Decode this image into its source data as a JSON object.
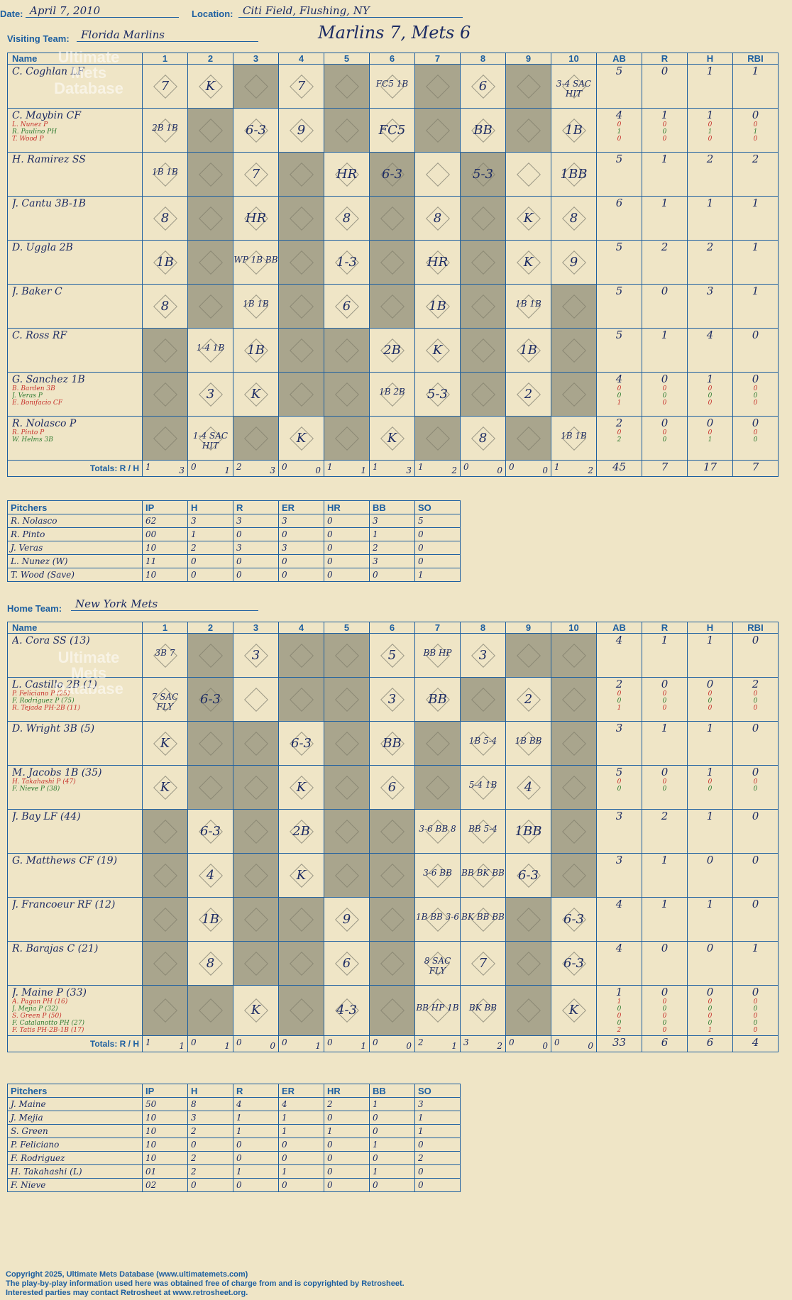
{
  "header": {
    "date_label": "Date:",
    "date": "April 7, 2010",
    "location_label": "Location:",
    "location": "Citi Field, Flushing, NY",
    "title": "Marlins 7, Mets 6"
  },
  "watermark": "Ultimate Mets Database",
  "visiting": {
    "label": "Visiting Team:",
    "team": "Florida Marlins",
    "cols": [
      "Name",
      "1",
      "2",
      "3",
      "4",
      "5",
      "6",
      "7",
      "8",
      "9",
      "10",
      "AB",
      "R",
      "H",
      "RBI"
    ],
    "rows": [
      {
        "name": "C. Coghlan LF",
        "subs": [],
        "gray": [
          3,
          5,
          7,
          9
        ],
        "plays": [
          "7",
          "K",
          "",
          "7",
          "",
          "FC5 1B",
          "",
          "6",
          "",
          "3-4 SAC HIT"
        ],
        "ab": [
          "5"
        ],
        "r": [
          "0"
        ],
        "h": [
          "1"
        ],
        "rbi": [
          "1"
        ]
      },
      {
        "name": "C. Maybin CF",
        "subs": [
          "L. Nunez P",
          "R. Paulino PH",
          "T. Wood P"
        ],
        "gray": [
          2,
          5,
          7,
          9
        ],
        "plays": [
          "2B 1B",
          "",
          "6-3",
          "9",
          "",
          "FC5",
          "",
          "BB",
          "",
          "1B"
        ],
        "ab": [
          "4",
          "0",
          "1",
          "0"
        ],
        "r": [
          "1",
          "0",
          "0",
          "0"
        ],
        "h": [
          "1",
          "0",
          "1",
          "0"
        ],
        "rbi": [
          "0",
          "0",
          "1",
          "0"
        ]
      },
      {
        "name": "H. Ramirez SS",
        "subs": [],
        "gray": [
          2,
          4,
          6,
          8
        ],
        "plays": [
          "1B 1B",
          "",
          "7",
          "",
          "HR",
          "6-3",
          "",
          "5-3",
          "",
          "1BB"
        ],
        "ab": [
          "5"
        ],
        "r": [
          "1"
        ],
        "h": [
          "2"
        ],
        "rbi": [
          "2"
        ]
      },
      {
        "name": "J. Cantu 3B-1B",
        "subs": [],
        "gray": [
          2,
          4,
          6,
          8
        ],
        "plays": [
          "8",
          "",
          "HR",
          "",
          "8",
          "",
          "8",
          "",
          "K",
          "8"
        ],
        "ab": [
          "6"
        ],
        "r": [
          "1"
        ],
        "h": [
          "1"
        ],
        "rbi": [
          "1"
        ]
      },
      {
        "name": "D. Uggla 2B",
        "subs": [],
        "gray": [
          2,
          4,
          6,
          8
        ],
        "plays": [
          "1B",
          "",
          "WP 1B BB",
          "",
          "1-3",
          "",
          "HR",
          "",
          "K",
          "9"
        ],
        "ab": [
          "5"
        ],
        "r": [
          "2"
        ],
        "h": [
          "2"
        ],
        "rbi": [
          "1"
        ]
      },
      {
        "name": "J. Baker C",
        "subs": [],
        "gray": [
          2,
          4,
          6,
          8,
          10
        ],
        "plays": [
          "8",
          "",
          "1B 1B",
          "",
          "6",
          "",
          "1B",
          "",
          "1B 1B",
          ""
        ],
        "ab": [
          "5"
        ],
        "r": [
          "0"
        ],
        "h": [
          "3"
        ],
        "rbi": [
          "1"
        ]
      },
      {
        "name": "C. Ross RF",
        "subs": [],
        "gray": [
          1,
          4,
          5,
          8,
          10
        ],
        "plays": [
          "",
          "1-4 1B",
          "1B",
          "",
          "",
          "2B",
          "K",
          "",
          "1B",
          ""
        ],
        "ab": [
          "5"
        ],
        "r": [
          "1"
        ],
        "h": [
          "4"
        ],
        "rbi": [
          "0"
        ]
      },
      {
        "name": "G. Sanchez 1B",
        "subs": [
          "B. Barden 3B",
          "J. Veras P",
          "E. Bonifacio CF"
        ],
        "gray": [
          1,
          4,
          5,
          8,
          10
        ],
        "plays": [
          "",
          "3",
          "K",
          "",
          "",
          "1B 2B",
          "5-3",
          "",
          "2",
          ""
        ],
        "ab": [
          "4",
          "0",
          "0",
          "1"
        ],
        "r": [
          "0",
          "0",
          "0",
          "0"
        ],
        "h": [
          "1",
          "0",
          "0",
          "0"
        ],
        "rbi": [
          "0",
          "0",
          "0",
          "0"
        ]
      },
      {
        "name": "R. Nolasco P",
        "subs": [
          "R. Pinto P",
          "W. Helms 3B"
        ],
        "gray": [
          1,
          3,
          5,
          7,
          9
        ],
        "plays": [
          "",
          "1-4 SAC HIT",
          "",
          "K",
          "",
          "K",
          "",
          "8",
          "",
          "1B 1B"
        ],
        "ab": [
          "2",
          "0",
          "2"
        ],
        "r": [
          "0",
          "0",
          "0"
        ],
        "h": [
          "0",
          "0",
          "1"
        ],
        "rbi": [
          "0",
          "0",
          "0"
        ]
      }
    ],
    "totals_label": "Totals:",
    "rh_labels": [
      "R",
      "H"
    ],
    "inning_totals": [
      [
        "1",
        "3"
      ],
      [
        "0",
        "1"
      ],
      [
        "2",
        "3"
      ],
      [
        "0",
        "0"
      ],
      [
        "1",
        "1"
      ],
      [
        "1",
        "3"
      ],
      [
        "1",
        "2"
      ],
      [
        "0",
        "0"
      ],
      [
        "0",
        "0"
      ],
      [
        "1",
        "2"
      ]
    ],
    "grand": [
      "45",
      "7",
      "17",
      "7"
    ]
  },
  "visiting_pitchers": {
    "cols": [
      "Pitchers",
      "IP",
      "H",
      "R",
      "ER",
      "HR",
      "BB",
      "SO"
    ],
    "rows": [
      [
        "R. Nolasco",
        "62",
        "3",
        "3",
        "3",
        "0",
        "3",
        "5"
      ],
      [
        "R. Pinto",
        "00",
        "1",
        "0",
        "0",
        "0",
        "1",
        "0"
      ],
      [
        "J. Veras",
        "10",
        "2",
        "3",
        "3",
        "0",
        "2",
        "0"
      ],
      [
        "L. Nunez (W)",
        "11",
        "0",
        "0",
        "0",
        "0",
        "3",
        "0"
      ],
      [
        "T. Wood (Save)",
        "10",
        "0",
        "0",
        "0",
        "0",
        "0",
        "1"
      ]
    ]
  },
  "home": {
    "label": "Home Team:",
    "team": "New York Mets",
    "cols": [
      "Name",
      "1",
      "2",
      "3",
      "4",
      "5",
      "6",
      "7",
      "8",
      "9",
      "10",
      "AB",
      "R",
      "H",
      "RBI"
    ],
    "rows": [
      {
        "name": "A. Cora SS (13)",
        "subs": [],
        "gray": [
          2,
          4,
          5,
          9,
          10
        ],
        "plays": [
          "3B 7",
          "",
          "3",
          "",
          "",
          "5",
          "BB HP",
          "3",
          "",
          ""
        ],
        "ab": [
          "4"
        ],
        "r": [
          "1"
        ],
        "h": [
          "1"
        ],
        "rbi": [
          "0"
        ]
      },
      {
        "name": "L. Castillo 2B (1)",
        "subs": [
          "P. Feliciano P (25)",
          "F. Rodriguez P (75)",
          "R. Tejada PH-2B (11)"
        ],
        "gray": [
          2,
          4,
          5,
          8,
          10
        ],
        "plays": [
          "7 SAC FLY",
          "6-3",
          "",
          "",
          "",
          "3",
          "BB",
          "",
          "2",
          ""
        ],
        "ab": [
          "2",
          "0",
          "0",
          "1"
        ],
        "r": [
          "0",
          "0",
          "0",
          "0"
        ],
        "h": [
          "0",
          "0",
          "0",
          "0"
        ],
        "rbi": [
          "2",
          "0",
          "0",
          "0"
        ]
      },
      {
        "name": "D. Wright 3B (5)",
        "subs": [],
        "gray": [
          2,
          3,
          5,
          7,
          10
        ],
        "plays": [
          "K",
          "",
          "",
          "6-3",
          "",
          "BB",
          "",
          "1B 5-4",
          "1B BB",
          ""
        ],
        "ab": [
          "3"
        ],
        "r": [
          "1"
        ],
        "h": [
          "1"
        ],
        "rbi": [
          "0"
        ]
      },
      {
        "name": "M. Jacobs 1B (35)",
        "subs": [
          "H. Takahashi P (47)",
          "F. Nieve P (38)"
        ],
        "gray": [
          2,
          3,
          5,
          7,
          10
        ],
        "plays": [
          "K",
          "",
          "",
          "K",
          "",
          "6",
          "",
          "5-4 1B",
          "4",
          ""
        ],
        "ab": [
          "5",
          "0",
          "0"
        ],
        "r": [
          "0",
          "0",
          "0"
        ],
        "h": [
          "1",
          "0",
          "0"
        ],
        "rbi": [
          "0",
          "0",
          "0"
        ]
      },
      {
        "name": "J. Bay LF (44)",
        "subs": [],
        "gray": [
          1,
          3,
          5,
          6,
          10
        ],
        "plays": [
          "",
          "6-3",
          "",
          "2B",
          "",
          "",
          "3-6 BB 8",
          "BB 5-4",
          "1BB",
          ""
        ],
        "ab": [
          "3"
        ],
        "r": [
          "2"
        ],
        "h": [
          "1"
        ],
        "rbi": [
          "0"
        ]
      },
      {
        "name": "G. Matthews CF (19)",
        "subs": [],
        "gray": [
          1,
          3,
          5,
          6,
          10
        ],
        "plays": [
          "",
          "4",
          "",
          "K",
          "",
          "",
          "3-6 BB",
          "BB BK BB",
          "6-3",
          ""
        ],
        "ab": [
          "3"
        ],
        "r": [
          "1"
        ],
        "h": [
          "0"
        ],
        "rbi": [
          "0"
        ]
      },
      {
        "name": "J. Francoeur RF (12)",
        "subs": [],
        "gray": [
          1,
          3,
          4,
          6,
          9
        ],
        "plays": [
          "",
          "1B",
          "",
          "",
          "9",
          "",
          "1B BB 3-6",
          "BK BB BB",
          "",
          "6-3"
        ],
        "ab": [
          "4"
        ],
        "r": [
          "1"
        ],
        "h": [
          "1"
        ],
        "rbi": [
          "0"
        ]
      },
      {
        "name": "R. Barajas C (21)",
        "subs": [],
        "gray": [
          1,
          3,
          4,
          6,
          9
        ],
        "plays": [
          "",
          "8",
          "",
          "",
          "6",
          "",
          "8 SAC FLY",
          "7",
          "",
          "6-3"
        ],
        "ab": [
          "4"
        ],
        "r": [
          "0"
        ],
        "h": [
          "0"
        ],
        "rbi": [
          "1"
        ]
      },
      {
        "name": "J. Maine P (33)",
        "subs": [
          "A. Pagan PH (16)",
          "J. Mejia P (32)",
          "S. Green P (50)",
          "F. Catalanotto PH (27)",
          "F. Tatis PH-2B-1B (17)"
        ],
        "gray": [
          1,
          2,
          4,
          6,
          9
        ],
        "plays": [
          "",
          "",
          "K",
          "",
          "4-3",
          "",
          "BB HP 1B",
          "BK BB",
          "",
          "K"
        ],
        "ab": [
          "1",
          "1",
          "0",
          "0",
          "0",
          "2"
        ],
        "r": [
          "0",
          "0",
          "0",
          "0",
          "0",
          "0"
        ],
        "h": [
          "0",
          "0",
          "0",
          "0",
          "0",
          "1"
        ],
        "rbi": [
          "0",
          "0",
          "0",
          "0",
          "0",
          "0"
        ]
      }
    ],
    "totals_label": "Totals:",
    "rh_labels": [
      "R",
      "H"
    ],
    "inning_totals": [
      [
        "1",
        "1"
      ],
      [
        "0",
        "1"
      ],
      [
        "0",
        "0"
      ],
      [
        "0",
        "1"
      ],
      [
        "0",
        "1"
      ],
      [
        "0",
        "0"
      ],
      [
        "2",
        "1"
      ],
      [
        "3",
        "2"
      ],
      [
        "0",
        "0"
      ],
      [
        "0",
        "0"
      ]
    ],
    "grand": [
      "33",
      "6",
      "6",
      "4"
    ]
  },
  "home_pitchers": {
    "cols": [
      "Pitchers",
      "IP",
      "H",
      "R",
      "ER",
      "HR",
      "BB",
      "SO"
    ],
    "rows": [
      [
        "J. Maine",
        "50",
        "8",
        "4",
        "4",
        "2",
        "1",
        "3"
      ],
      [
        "J. Mejia",
        "10",
        "3",
        "1",
        "1",
        "0",
        "0",
        "1"
      ],
      [
        "S. Green",
        "10",
        "2",
        "1",
        "1",
        "1",
        "0",
        "1"
      ],
      [
        "P. Feliciano",
        "10",
        "0",
        "0",
        "0",
        "0",
        "1",
        "0"
      ],
      [
        "F. Rodriguez",
        "10",
        "2",
        "0",
        "0",
        "0",
        "0",
        "2"
      ],
      [
        "H. Takahashi (L)",
        "01",
        "2",
        "1",
        "1",
        "0",
        "1",
        "0"
      ],
      [
        "F. Nieve",
        "02",
        "0",
        "0",
        "0",
        "0",
        "0",
        "0"
      ]
    ]
  },
  "footer": {
    "line1": "Copyright 2025, Ultimate Mets Database (www.ultimatemets.com)",
    "line2": "The play-by-play information used here was obtained free of charge from and is copyrighted by Retrosheet.",
    "line3": "Interested parties may contact Retrosheet at www.retrosheet.org."
  },
  "colors": {
    "grid": "#1d5fa0",
    "paper": "#efe5c6",
    "shade": "#a9a58d",
    "ink": "#1c2b63",
    "red": "#c6302a",
    "green": "#2e7a30"
  }
}
